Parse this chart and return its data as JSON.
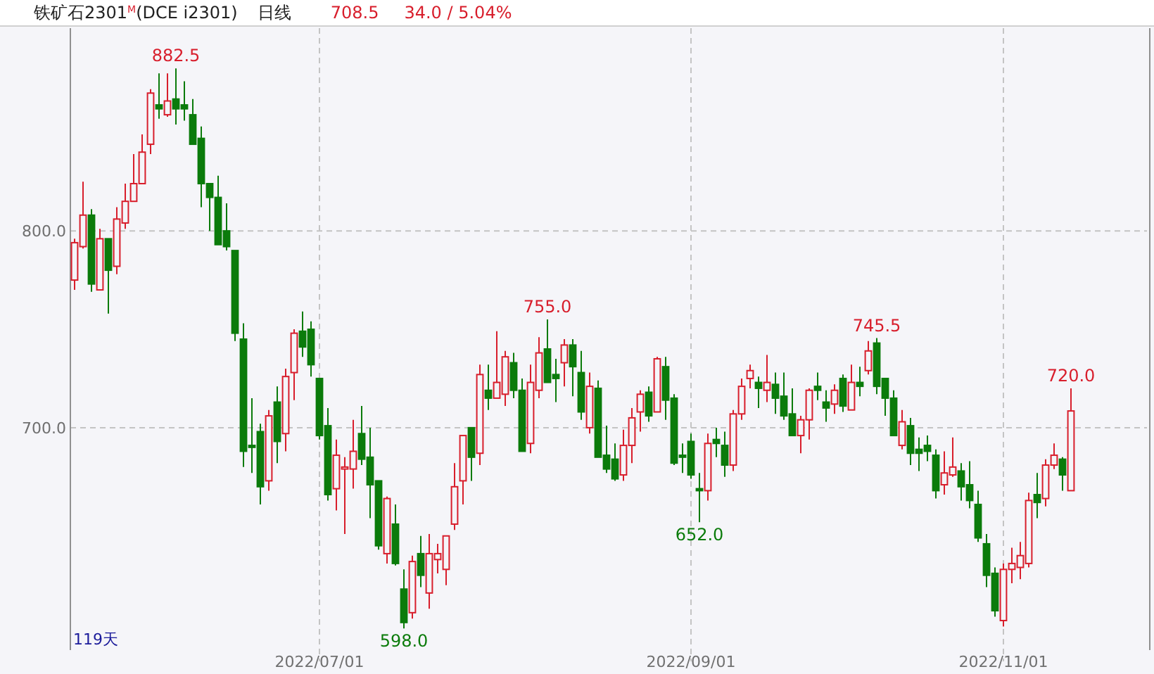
{
  "chart_data": {
    "type": "candlestick",
    "title": "铁矿石2301$^{M}$(DCE i2301)",
    "subtitle": "日线",
    "annotations": [
      "708.5",
      "34.0 / 5.04%",
      "119天",
      {
        "text": "882.5",
        "y": 882.5
      },
      {
        "text": "598.0",
        "y": 598.0
      },
      {
        "text": "755.0",
        "y": 755.0
      },
      {
        "text": "652.0",
        "y": 652.0
      },
      {
        "text": "745.5",
        "y": 745.5
      },
      {
        "text": "720.0",
        "y": 720.0
      }
    ],
    "categories": [
      null,
      null,
      null,
      null,
      null,
      null,
      null,
      null,
      null,
      null,
      null,
      null,
      null,
      null,
      null,
      null,
      null,
      null,
      null,
      null,
      null,
      null,
      null,
      null,
      null,
      null,
      null,
      null,
      null,
      "2022/07/01",
      null,
      null,
      null,
      null,
      null,
      null,
      null,
      null,
      null,
      null,
      null,
      null,
      null,
      null,
      null,
      null,
      null,
      null,
      null,
      null,
      null,
      null,
      null,
      null,
      null,
      null,
      null,
      null,
      null,
      null,
      null,
      null,
      null,
      null,
      null,
      null,
      null,
      null,
      null,
      null,
      null,
      null,
      null,
      "2022/09/01",
      null,
      null,
      null,
      null,
      null,
      null,
      null,
      null,
      null,
      null,
      null,
      null,
      null,
      null,
      null,
      null,
      null,
      null,
      null,
      null,
      null,
      null,
      null,
      null,
      null,
      null,
      null,
      null,
      null,
      null,
      null,
      null,
      null,
      null,
      null,
      null,
      "2022/11/01",
      null,
      null,
      null,
      null,
      null,
      null,
      null,
      null
    ],
    "ohlc": [
      [
        775,
        796,
        770,
        794
      ],
      [
        792,
        825,
        791,
        808
      ],
      [
        808,
        811,
        769,
        773
      ],
      [
        770,
        801,
        770,
        796
      ],
      [
        796,
        796,
        758,
        780
      ],
      [
        782,
        812,
        778,
        806
      ],
      [
        804,
        824,
        801,
        815
      ],
      [
        815,
        839,
        815,
        824
      ],
      [
        824,
        849,
        824,
        840
      ],
      [
        844,
        872,
        839,
        870
      ],
      [
        864,
        880,
        857,
        862
      ],
      [
        859,
        880,
        858,
        866
      ],
      [
        867,
        882.5,
        854,
        862
      ],
      [
        864,
        876,
        856,
        862
      ],
      [
        859,
        867,
        844,
        844
      ],
      [
        847,
        853,
        812,
        824
      ],
      [
        824,
        824,
        800,
        817
      ],
      [
        817,
        828,
        793,
        793
      ],
      [
        800,
        814,
        790,
        792
      ],
      [
        790,
        790,
        744,
        748
      ],
      [
        745,
        753,
        680,
        688
      ],
      [
        691,
        715,
        677,
        690
      ],
      [
        698,
        702,
        661,
        670
      ],
      [
        673,
        709,
        668,
        706
      ],
      [
        713,
        721,
        682,
        693
      ],
      [
        697,
        730,
        688,
        726
      ],
      [
        728,
        750,
        714,
        748
      ],
      [
        749,
        759,
        736,
        741
      ],
      [
        750,
        754,
        726,
        732
      ],
      [
        725,
        725,
        694,
        696
      ],
      [
        701,
        710,
        663,
        666
      ],
      [
        669,
        694,
        658,
        686
      ],
      [
        679,
        685,
        646,
        680
      ],
      [
        679,
        704,
        669,
        688
      ],
      [
        697,
        711,
        681,
        684
      ],
      [
        685,
        700,
        654,
        671
      ],
      [
        673,
        673,
        638,
        640
      ],
      [
        636,
        665,
        631,
        664
      ],
      [
        651,
        661,
        630,
        631
      ],
      [
        618,
        628,
        598.0,
        601
      ],
      [
        606,
        635,
        603,
        632
      ],
      [
        636,
        645,
        619,
        625
      ],
      [
        616,
        646,
        608,
        636
      ],
      [
        633,
        641,
        626,
        636
      ],
      [
        628,
        645,
        620,
        645
      ],
      [
        651,
        682,
        648,
        670
      ],
      [
        673,
        696,
        661,
        696
      ],
      [
        700,
        700,
        673,
        685
      ],
      [
        687,
        732,
        681,
        727
      ],
      [
        719,
        732,
        709,
        715
      ],
      [
        715,
        749,
        715,
        723
      ],
      [
        717,
        739,
        711,
        736
      ],
      [
        733,
        738,
        715,
        719
      ],
      [
        719,
        725,
        688,
        688
      ],
      [
        692,
        732,
        687,
        723
      ],
      [
        719,
        746,
        715,
        738
      ],
      [
        740,
        755.0,
        723,
        723
      ],
      [
        727,
        735,
        713,
        725
      ],
      [
        733,
        745,
        721,
        742
      ],
      [
        742,
        745,
        716,
        731
      ],
      [
        728,
        739,
        704,
        708
      ],
      [
        700,
        728,
        697,
        721
      ],
      [
        720,
        724,
        685,
        685
      ],
      [
        686,
        701,
        677,
        679
      ],
      [
        684,
        692,
        673,
        674
      ],
      [
        676,
        699,
        673,
        691
      ],
      [
        691,
        710,
        682,
        705
      ],
      [
        708,
        719,
        698,
        717
      ],
      [
        718,
        721,
        703,
        706
      ],
      [
        708,
        736,
        708,
        735
      ],
      [
        731,
        736,
        704,
        714
      ],
      [
        715,
        717,
        681,
        682
      ],
      [
        686,
        692,
        677,
        685
      ],
      [
        693,
        697,
        674,
        676
      ],
      [
        669,
        677,
        652.0,
        668
      ],
      [
        668,
        697,
        663,
        692
      ],
      [
        694,
        700,
        685,
        692
      ],
      [
        691,
        698,
        675,
        681
      ],
      [
        681,
        709,
        678,
        707
      ],
      [
        707,
        725,
        704,
        721
      ],
      [
        725,
        732,
        720,
        729
      ],
      [
        723,
        726,
        710,
        720
      ],
      [
        719,
        737,
        713,
        723
      ],
      [
        722,
        728,
        707,
        715
      ],
      [
        716,
        728,
        704,
        706
      ],
      [
        707,
        720,
        696,
        696
      ],
      [
        696,
        706,
        687,
        704
      ],
      [
        704,
        720,
        694,
        719
      ],
      [
        721,
        728,
        714,
        719
      ],
      [
        713,
        719,
        703,
        710
      ],
      [
        712,
        722,
        707,
        719
      ],
      [
        725,
        727,
        708,
        711
      ],
      [
        709,
        732,
        709,
        723
      ],
      [
        723,
        731,
        716,
        721
      ],
      [
        729,
        744,
        727,
        739
      ],
      [
        743,
        745.5,
        717,
        721
      ],
      [
        725,
        725,
        706,
        715
      ],
      [
        715,
        719,
        696,
        696
      ],
      [
        691,
        709,
        689,
        703
      ],
      [
        701,
        705,
        681,
        687
      ],
      [
        689,
        695,
        678,
        687
      ],
      [
        691,
        696,
        683,
        688
      ],
      [
        686,
        689,
        664,
        668
      ],
      [
        671,
        688,
        666,
        677
      ],
      [
        676,
        695,
        675,
        680
      ],
      [
        678,
        682,
        663,
        670
      ],
      [
        671,
        683,
        659,
        663
      ],
      [
        661,
        668,
        642,
        644
      ],
      [
        641,
        646,
        619,
        625
      ],
      [
        626,
        629,
        604,
        607
      ],
      [
        602,
        631,
        599,
        628
      ],
      [
        628,
        639,
        621,
        631
      ],
      [
        629,
        642,
        623,
        635
      ],
      [
        631,
        667,
        629,
        663
      ],
      [
        666,
        677,
        654,
        662
      ],
      [
        664,
        684,
        660,
        681
      ],
      [
        681,
        692,
        679,
        686
      ],
      [
        684,
        685,
        668,
        676
      ],
      [
        668,
        720.0,
        668,
        708.5
      ]
    ],
    "colors": [
      "#d81e2c",
      "#d81e2c",
      "#0b7b0b",
      "#d81e2c",
      "#0b7b0b",
      "#d81e2c",
      "#d81e2c",
      "#d81e2c",
      "#d81e2c",
      "#d81e2c",
      "#0b7b0b",
      "#d81e2c",
      "#0b7b0b",
      "#0b7b0b",
      "#0b7b0b",
      "#0b7b0b",
      "#0b7b0b",
      "#0b7b0b",
      "#0b7b0b",
      "#0b7b0b",
      "#0b7b0b",
      "#0b7b0b",
      "#0b7b0b",
      "#d81e2c",
      "#0b7b0b",
      "#d81e2c",
      "#d81e2c",
      "#0b7b0b",
      "#0b7b0b",
      "#0b7b0b",
      "#0b7b0b",
      "#d81e2c",
      "#d81e2c",
      "#d81e2c",
      "#0b7b0b",
      "#0b7b0b",
      "#0b7b0b",
      "#d81e2c",
      "#0b7b0b",
      "#0b7b0b",
      "#d81e2c",
      "#0b7b0b",
      "#d81e2c",
      "#d81e2c",
      "#d81e2c",
      "#d81e2c",
      "#d81e2c",
      "#0b7b0b",
      "#d81e2c",
      "#0b7b0b",
      "#d81e2c",
      "#d81e2c",
      "#0b7b0b",
      "#0b7b0b",
      "#d81e2c",
      "#d81e2c",
      "#0b7b0b",
      "#0b7b0b",
      "#d81e2c",
      "#0b7b0b",
      "#0b7b0b",
      "#d81e2c",
      "#0b7b0b",
      "#0b7b0b",
      "#0b7b0b",
      "#d81e2c",
      "#d81e2c",
      "#d81e2c",
      "#0b7b0b",
      "#d81e2c",
      "#0b7b0b",
      "#0b7b0b",
      "#0b7b0b",
      "#0b7b0b",
      "#0b7b0b",
      "#d81e2c",
      "#0b7b0b",
      "#0b7b0b",
      "#d81e2c",
      "#d81e2c",
      "#d81e2c",
      "#0b7b0b",
      "#d81e2c",
      "#0b7b0b",
      "#0b7b0b",
      "#0b7b0b",
      "#d81e2c",
      "#d81e2c",
      "#0b7b0b",
      "#0b7b0b",
      "#d81e2c",
      "#0b7b0b",
      "#d81e2c",
      "#0b7b0b",
      "#d81e2c",
      "#0b7b0b",
      "#0b7b0b",
      "#0b7b0b",
      "#d81e2c",
      "#0b7b0b",
      "#0b7b0b",
      "#0b7b0b",
      "#0b7b0b",
      "#d81e2c",
      "#d81e2c",
      "#0b7b0b",
      "#0b7b0b",
      "#0b7b0b",
      "#0b7b0b",
      "#0b7b0b",
      "#d81e2c",
      "#d81e2c",
      "#d81e2c",
      "#d81e2c",
      "#0b7b0b",
      "#d81e2c",
      "#d81e2c",
      "#0b7b0b",
      "#d81e2c"
    ],
    "ylim": [
      587,
      903
    ],
    "yticks": [
      {
        "value": 700,
        "label": "700.0"
      },
      {
        "value": 800,
        "label": "800.0"
      }
    ],
    "grid": true
  }
}
